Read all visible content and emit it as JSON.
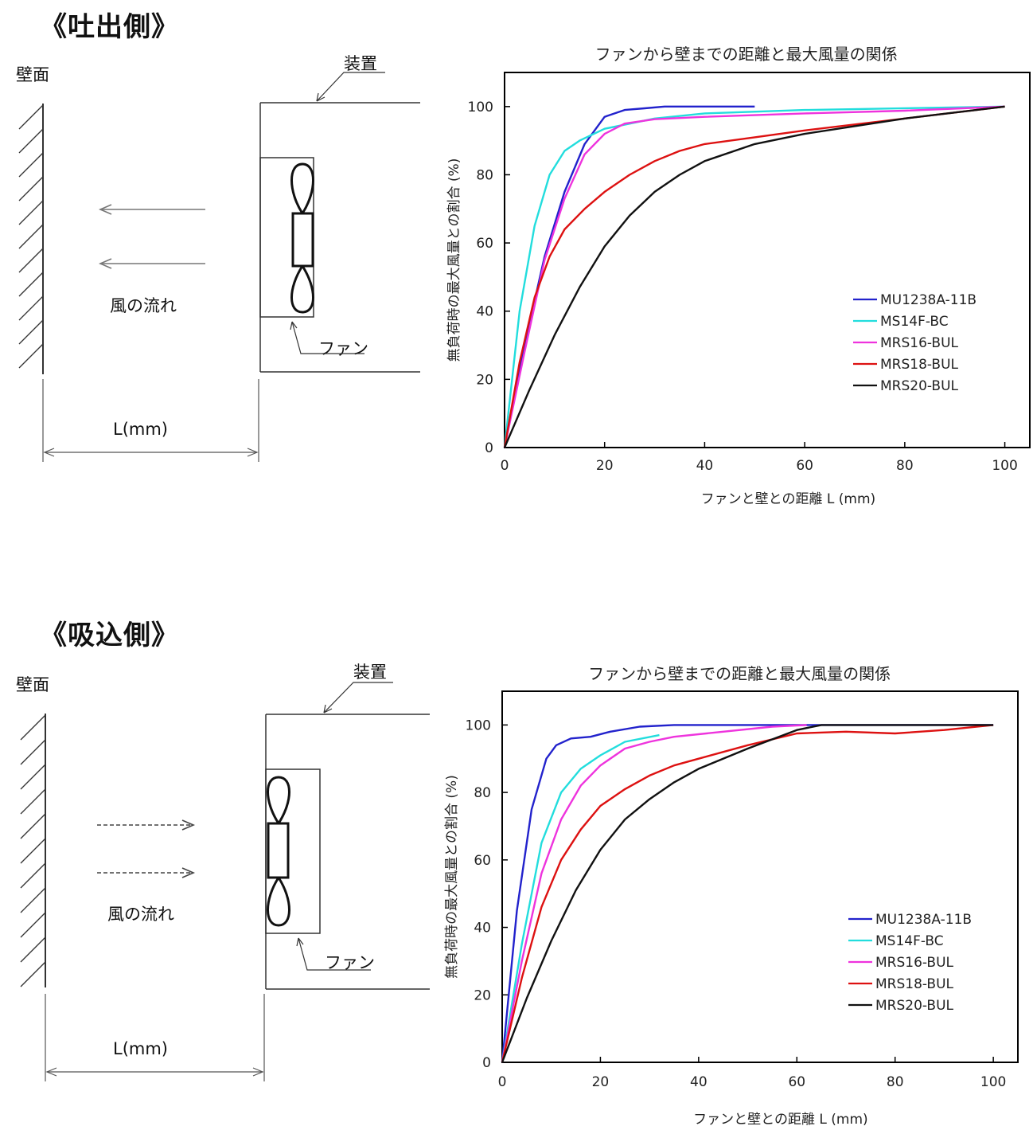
{
  "sections": [
    {
      "title": "《吐出側》",
      "diagram": {
        "wall_label": "壁面",
        "device_label": "装置",
        "fan_label": "ファン",
        "flow_label": "風の流れ",
        "distance_label": "L(mm)",
        "flow_direction": "toward-wall"
      }
    },
    {
      "title": "《吸込側》",
      "diagram": {
        "wall_label": "壁面",
        "device_label": "装置",
        "fan_label": "ファン",
        "flow_label": "風の流れ",
        "distance_label": "L(mm)",
        "flow_direction": "toward-fan"
      }
    }
  ],
  "chart_data": [
    {
      "type": "line",
      "title": "ファンから壁までの距離と最大風量の関係",
      "xlabel": "ファンと壁との距離  L (mm)",
      "ylabel": "無負荷時の最大風量との割合 (%)",
      "xlim": [
        0,
        105
      ],
      "ylim": [
        0,
        110
      ],
      "xticks": [
        0,
        20,
        40,
        60,
        80,
        100
      ],
      "yticks": [
        0,
        20,
        40,
        60,
        80,
        100
      ],
      "legend_position": "right",
      "series": [
        {
          "name": "MU1238A-11B",
          "color": "#2222cc",
          "x": [
            0,
            4,
            8,
            12,
            16,
            20,
            24,
            28,
            32,
            36,
            50
          ],
          "y": [
            0,
            30,
            56,
            75,
            89,
            97,
            99,
            99.5,
            100,
            100,
            100
          ]
        },
        {
          "name": "MS14F-BC",
          "color": "#22dddd",
          "x": [
            0,
            3,
            6,
            9,
            12,
            15,
            20,
            30,
            40,
            60,
            100
          ],
          "y": [
            0,
            40,
            65,
            80,
            87,
            90,
            93.5,
            96.5,
            98,
            99,
            100
          ]
        },
        {
          "name": "MRS16-BUL",
          "color": "#ee33dd",
          "x": [
            0,
            4,
            8,
            12,
            16,
            20,
            24,
            30,
            40,
            60,
            80,
            100
          ],
          "y": [
            0,
            28,
            55,
            73,
            86,
            92,
            95,
            96.3,
            97,
            98,
            98.8,
            100
          ]
        },
        {
          "name": "MRS18-BUL",
          "color": "#dd1111",
          "x": [
            0,
            3,
            6,
            9,
            12,
            16,
            20,
            25,
            30,
            35,
            40,
            50,
            60,
            80,
            100
          ],
          "y": [
            0,
            25,
            44,
            56,
            64,
            70,
            75,
            80,
            84,
            87,
            89,
            91,
            93,
            96.5,
            100
          ]
        },
        {
          "name": "MRS20-BUL",
          "color": "#111111",
          "x": [
            0,
            5,
            10,
            15,
            20,
            25,
            30,
            35,
            40,
            50,
            60,
            80,
            100
          ],
          "y": [
            0,
            17,
            33,
            47,
            59,
            68,
            75,
            80,
            84,
            89,
            92,
            96.5,
            100
          ]
        }
      ]
    },
    {
      "type": "line",
      "title": "ファンから壁までの距離と最大風量の関係",
      "xlabel": "ファンと壁との距離  L (mm)",
      "ylabel": "無負荷時の最大風量との割合 (%)",
      "xlim": [
        0,
        105
      ],
      "ylim": [
        0,
        110
      ],
      "xticks": [
        0,
        20,
        40,
        60,
        80,
        100
      ],
      "yticks": [
        0,
        20,
        40,
        60,
        80,
        100
      ],
      "legend_position": "right",
      "series": [
        {
          "name": "MU1238A-11B",
          "color": "#2222cc",
          "x": [
            0,
            3,
            6,
            9,
            11,
            14,
            18,
            22,
            28,
            35,
            60,
            100
          ],
          "y": [
            0,
            45,
            75,
            90,
            94,
            96,
            96.5,
            98,
            99.5,
            100,
            100,
            100
          ]
        },
        {
          "name": "MS14F-BC",
          "color": "#22dddd",
          "x": [
            0,
            4,
            8,
            12,
            16,
            20,
            25,
            32
          ],
          "y": [
            0,
            35,
            65,
            80,
            87,
            91,
            95,
            97
          ]
        },
        {
          "name": "MRS16-BUL",
          "color": "#ee33dd",
          "x": [
            0,
            4,
            8,
            12,
            16,
            20,
            25,
            30,
            35,
            45,
            55,
            62
          ],
          "y": [
            0,
            30,
            56,
            72,
            82,
            88,
            93,
            95,
            96.5,
            98,
            99.5,
            100
          ]
        },
        {
          "name": "MRS18-BUL",
          "color": "#dd1111",
          "x": [
            0,
            4,
            8,
            12,
            16,
            20,
            25,
            30,
            35,
            40,
            50,
            60,
            70,
            80,
            90,
            100
          ],
          "y": [
            0,
            25,
            46,
            60,
            69,
            76,
            81,
            85,
            88,
            90,
            94,
            97.5,
            98,
            97.5,
            98.5,
            100
          ]
        },
        {
          "name": "MRS20-BUL",
          "color": "#111111",
          "x": [
            0,
            5,
            10,
            15,
            20,
            25,
            30,
            35,
            40,
            50,
            60,
            65,
            70,
            80,
            100
          ],
          "y": [
            0,
            19,
            36,
            51,
            63,
            72,
            78,
            83,
            87,
            93,
            98.5,
            100,
            100,
            100,
            100
          ]
        }
      ]
    }
  ]
}
